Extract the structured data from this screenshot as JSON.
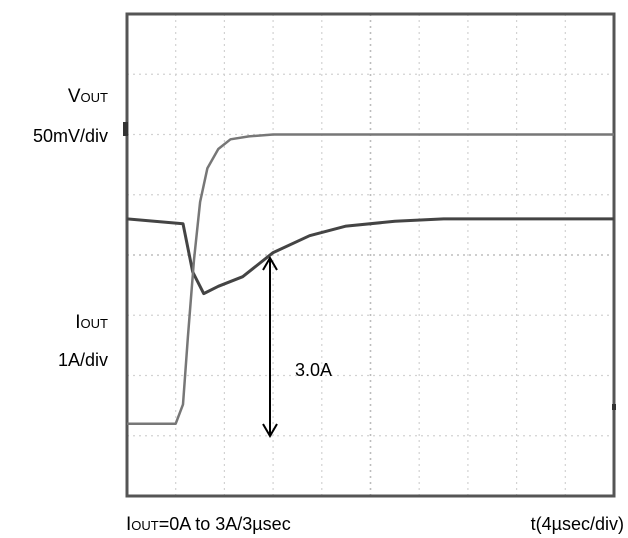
{
  "chart_data": {
    "type": "line",
    "title": "",
    "grid": true,
    "x_units": "µs",
    "x_range": [
      0,
      40
    ],
    "xlabel": "t(4µsec/div)",
    "annotations": {
      "step_label_main": "I",
      "step_label_sub": "OUT",
      "step_label_rest": "=0A to 3A/3µsec",
      "delta_label": "3.0A"
    },
    "series": [
      {
        "name": "VOUT",
        "label_main": "V",
        "label_sub": "OUT",
        "scale": "50mV/div",
        "units": "mV",
        "y_range": [
          -115,
          85
        ],
        "x": [
          0,
          4.6,
          5.4,
          6.3,
          7.5,
          9.5,
          12,
          15,
          18,
          22,
          26,
          30,
          35,
          40
        ],
        "values": [
          0,
          -2,
          -22,
          -31,
          -28,
          -24,
          -14,
          -7,
          -3,
          -1,
          0,
          0,
          0,
          0
        ]
      },
      {
        "name": "IOUT",
        "label_main": "I",
        "label_sub": "OUT",
        "scale": "1A/div",
        "units": "A",
        "y_range": [
          -0.75,
          4.25
        ],
        "x": [
          0,
          4.0,
          4.6,
          5.0,
          5.5,
          6.0,
          6.6,
          7.5,
          8.5,
          10,
          12,
          14,
          20,
          30,
          40
        ],
        "values": [
          0,
          0,
          0.2,
          0.9,
          1.7,
          2.3,
          2.65,
          2.85,
          2.95,
          2.98,
          3.0,
          3.0,
          3.0,
          3.0,
          3.0
        ]
      }
    ]
  }
}
